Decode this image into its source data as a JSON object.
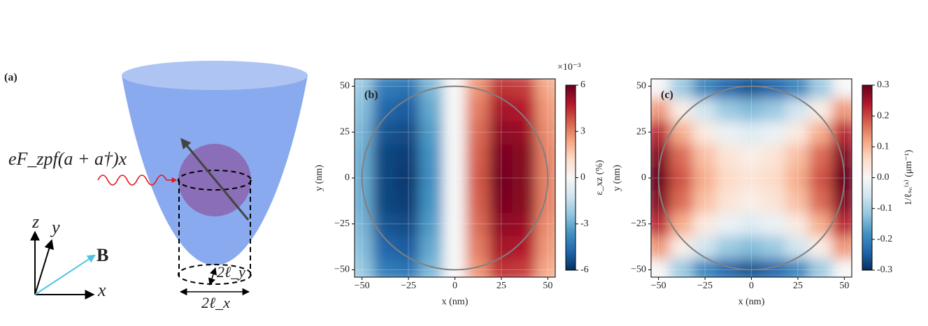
{
  "diagram": {
    "label": "(a)",
    "drive": "eF_zpf(a + a†)x",
    "axis_z": "z",
    "axis_y": "y",
    "axis_x": "x",
    "field": "B",
    "width_y": "2ℓ_y",
    "width_x": "2ℓ_x"
  },
  "chart_data": [
    {
      "type": "heatmap",
      "panel_label": "(b)",
      "xlabel": "x (nm)",
      "ylabel": "y (nm)",
      "x": [
        -50,
        -37.5,
        -25,
        -12.5,
        0,
        12.5,
        25,
        37.5,
        50
      ],
      "y": [
        -50,
        -37.5,
        -25,
        -12.5,
        0,
        12.5,
        25,
        37.5,
        50
      ],
      "values": [
        [
          -2.3,
          -4.2,
          -4.4,
          -2.7,
          0,
          2.7,
          4.4,
          4.2,
          2.3
        ],
        [
          -2.6,
          -4.8,
          -5.0,
          -3.1,
          0,
          3.1,
          5.0,
          4.8,
          2.6
        ],
        [
          -2.8,
          -5.2,
          -5.4,
          -3.4,
          0,
          3.4,
          5.4,
          5.2,
          2.8
        ],
        [
          -3.0,
          -5.5,
          -5.7,
          -3.6,
          0,
          3.6,
          5.7,
          5.5,
          3.0
        ],
        [
          -3.0,
          -5.5,
          -5.8,
          -3.7,
          0,
          3.7,
          5.8,
          5.5,
          3.0
        ],
        [
          -3.0,
          -5.5,
          -5.7,
          -3.6,
          0,
          3.6,
          5.7,
          5.5,
          3.0
        ],
        [
          -2.8,
          -5.2,
          -5.4,
          -3.4,
          0,
          3.4,
          5.4,
          5.2,
          2.8
        ],
        [
          -2.6,
          -4.8,
          -5.0,
          -3.1,
          0,
          3.1,
          5.0,
          4.8,
          2.6
        ],
        [
          -2.3,
          -4.2,
          -4.4,
          -2.7,
          0,
          2.7,
          4.4,
          4.2,
          2.3
        ]
      ],
      "xlim": [
        -54,
        54
      ],
      "ylim": [
        -54,
        54
      ],
      "xticks": [
        {
          "value": -50,
          "label": "−50"
        },
        {
          "value": -25,
          "label": "−25"
        },
        0,
        25,
        50
      ],
      "yticks": [
        {
          "value": -50,
          "label": "−50"
        },
        {
          "value": -25,
          "label": "−25"
        },
        0,
        25,
        50
      ],
      "grid": true,
      "circle_radius": 50,
      "circle_color": "#808080",
      "colormap": [
        "#053061",
        "#2166ac",
        "#4393c3",
        "#92c5de",
        "#d1e5f0",
        "#f7f7f7",
        "#fddbc7",
        "#f4a582",
        "#d6604d",
        "#b2182b",
        "#67001f"
      ],
      "colorbar": {
        "label": "ε_xz (%)",
        "lim": [
          -6,
          6
        ],
        "ticks": [
          -6,
          -3,
          0,
          3,
          6
        ],
        "offset_label": "×10⁻³"
      }
    },
    {
      "type": "heatmap",
      "panel_label": "(c)",
      "xlabel": "x (nm)",
      "ylabel": "y (nm)",
      "x": [
        -50,
        -37.5,
        -25,
        -12.5,
        0,
        12.5,
        25,
        37.5,
        50
      ],
      "y": [
        -50,
        -37.5,
        -25,
        -12.5,
        0,
        12.5,
        25,
        37.5,
        50
      ],
      "values": [
        [
          0.0,
          -0.11,
          -0.2,
          -0.24,
          -0.26,
          -0.24,
          -0.2,
          -0.11,
          0.0
        ],
        [
          0.13,
          0.02,
          -0.06,
          -0.11,
          -0.13,
          -0.11,
          -0.06,
          0.02,
          0.13
        ],
        [
          0.23,
          0.11,
          0.03,
          -0.02,
          -0.04,
          -0.02,
          0.03,
          0.11,
          0.23
        ],
        [
          0.28,
          0.17,
          0.09,
          0.04,
          0.02,
          0.04,
          0.09,
          0.17,
          0.28
        ],
        [
          0.3,
          0.19,
          0.11,
          0.06,
          0.04,
          0.06,
          0.11,
          0.19,
          0.3
        ],
        [
          0.28,
          0.17,
          0.09,
          0.04,
          0.02,
          0.04,
          0.09,
          0.17,
          0.28
        ],
        [
          0.23,
          0.11,
          0.03,
          -0.02,
          -0.04,
          -0.02,
          0.03,
          0.11,
          0.23
        ],
        [
          0.13,
          0.02,
          -0.06,
          -0.11,
          -0.13,
          -0.11,
          -0.06,
          0.02,
          0.13
        ],
        [
          0.0,
          -0.11,
          -0.2,
          -0.24,
          -0.26,
          -0.24,
          -0.2,
          -0.11,
          0.0
        ]
      ],
      "xlim": [
        -54,
        54
      ],
      "ylim": [
        -54,
        54
      ],
      "xticks": [
        {
          "value": -50,
          "label": "−50"
        },
        {
          "value": -25,
          "label": "−25"
        },
        0,
        25,
        50
      ],
      "yticks": [
        {
          "value": -50,
          "label": "−50"
        },
        {
          "value": -25,
          "label": "−25"
        },
        0,
        25,
        50
      ],
      "grid": true,
      "circle_radius": 50,
      "circle_color": "#808080",
      "colormap": [
        "#053061",
        "#2166ac",
        "#4393c3",
        "#92c5de",
        "#d1e5f0",
        "#f7f7f7",
        "#fddbc7",
        "#f4a582",
        "#d6604d",
        "#b2182b",
        "#67001f"
      ],
      "colorbar": {
        "label": "1/ℓₛₒ⁽ˣ⁾ (μm⁻¹)",
        "lim": [
          -0.3,
          0.3
        ],
        "ticks": [
          -0.3,
          -0.2,
          -0.1,
          {
            "value": 0,
            "label": "0.0"
          },
          0.1,
          0.2,
          0.3
        ]
      }
    }
  ]
}
